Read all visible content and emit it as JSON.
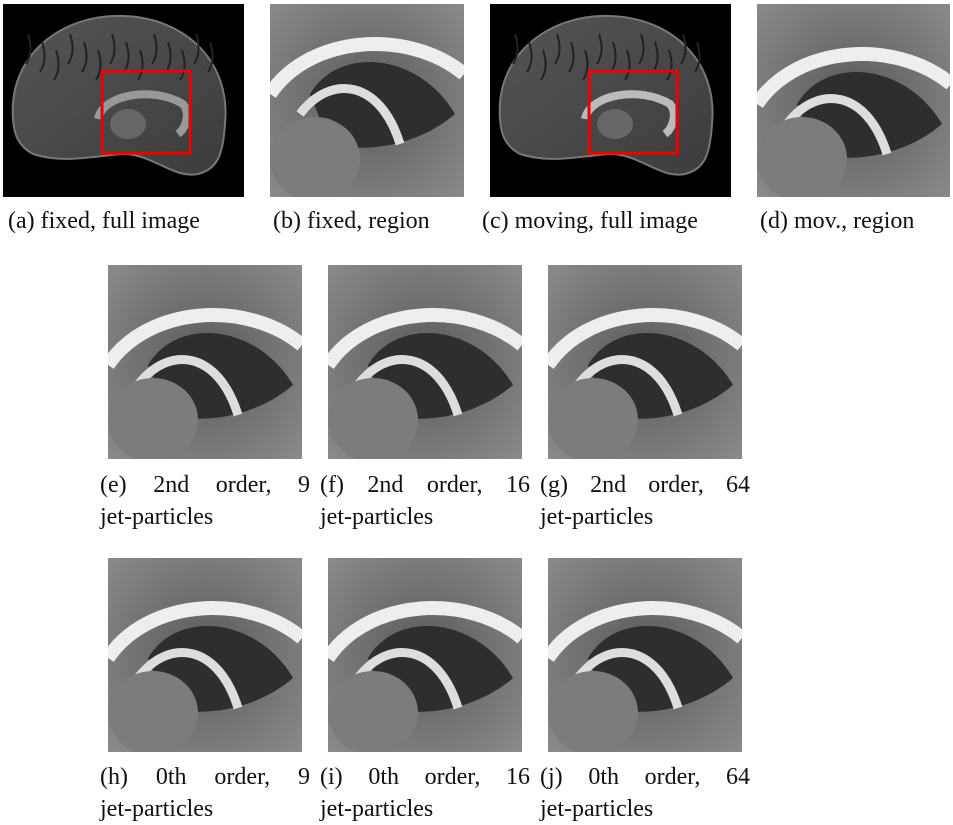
{
  "figure": {
    "panels": [
      {
        "caption": [
          "(a) fixed, full image"
        ]
      },
      {
        "caption": [
          "(b) fixed, region"
        ]
      },
      {
        "caption": [
          "(c) moving, full image"
        ]
      },
      {
        "caption": [
          "(d) mov., region"
        ]
      },
      {
        "caption": [
          "(e) 2nd order, 9",
          "jet-particles"
        ]
      },
      {
        "caption": [
          "(f) 2nd order, 16",
          "jet-particles"
        ]
      },
      {
        "caption": [
          "(g) 2nd order, 64",
          "jet-particles"
        ]
      },
      {
        "caption": [
          "(h) 0th order, 9",
          "jet-particles"
        ]
      },
      {
        "caption": [
          "(i) 0th order, 16",
          "jet-particles"
        ]
      },
      {
        "caption": [
          "(j) 0th order, 64",
          "jet-particles"
        ]
      }
    ]
  }
}
